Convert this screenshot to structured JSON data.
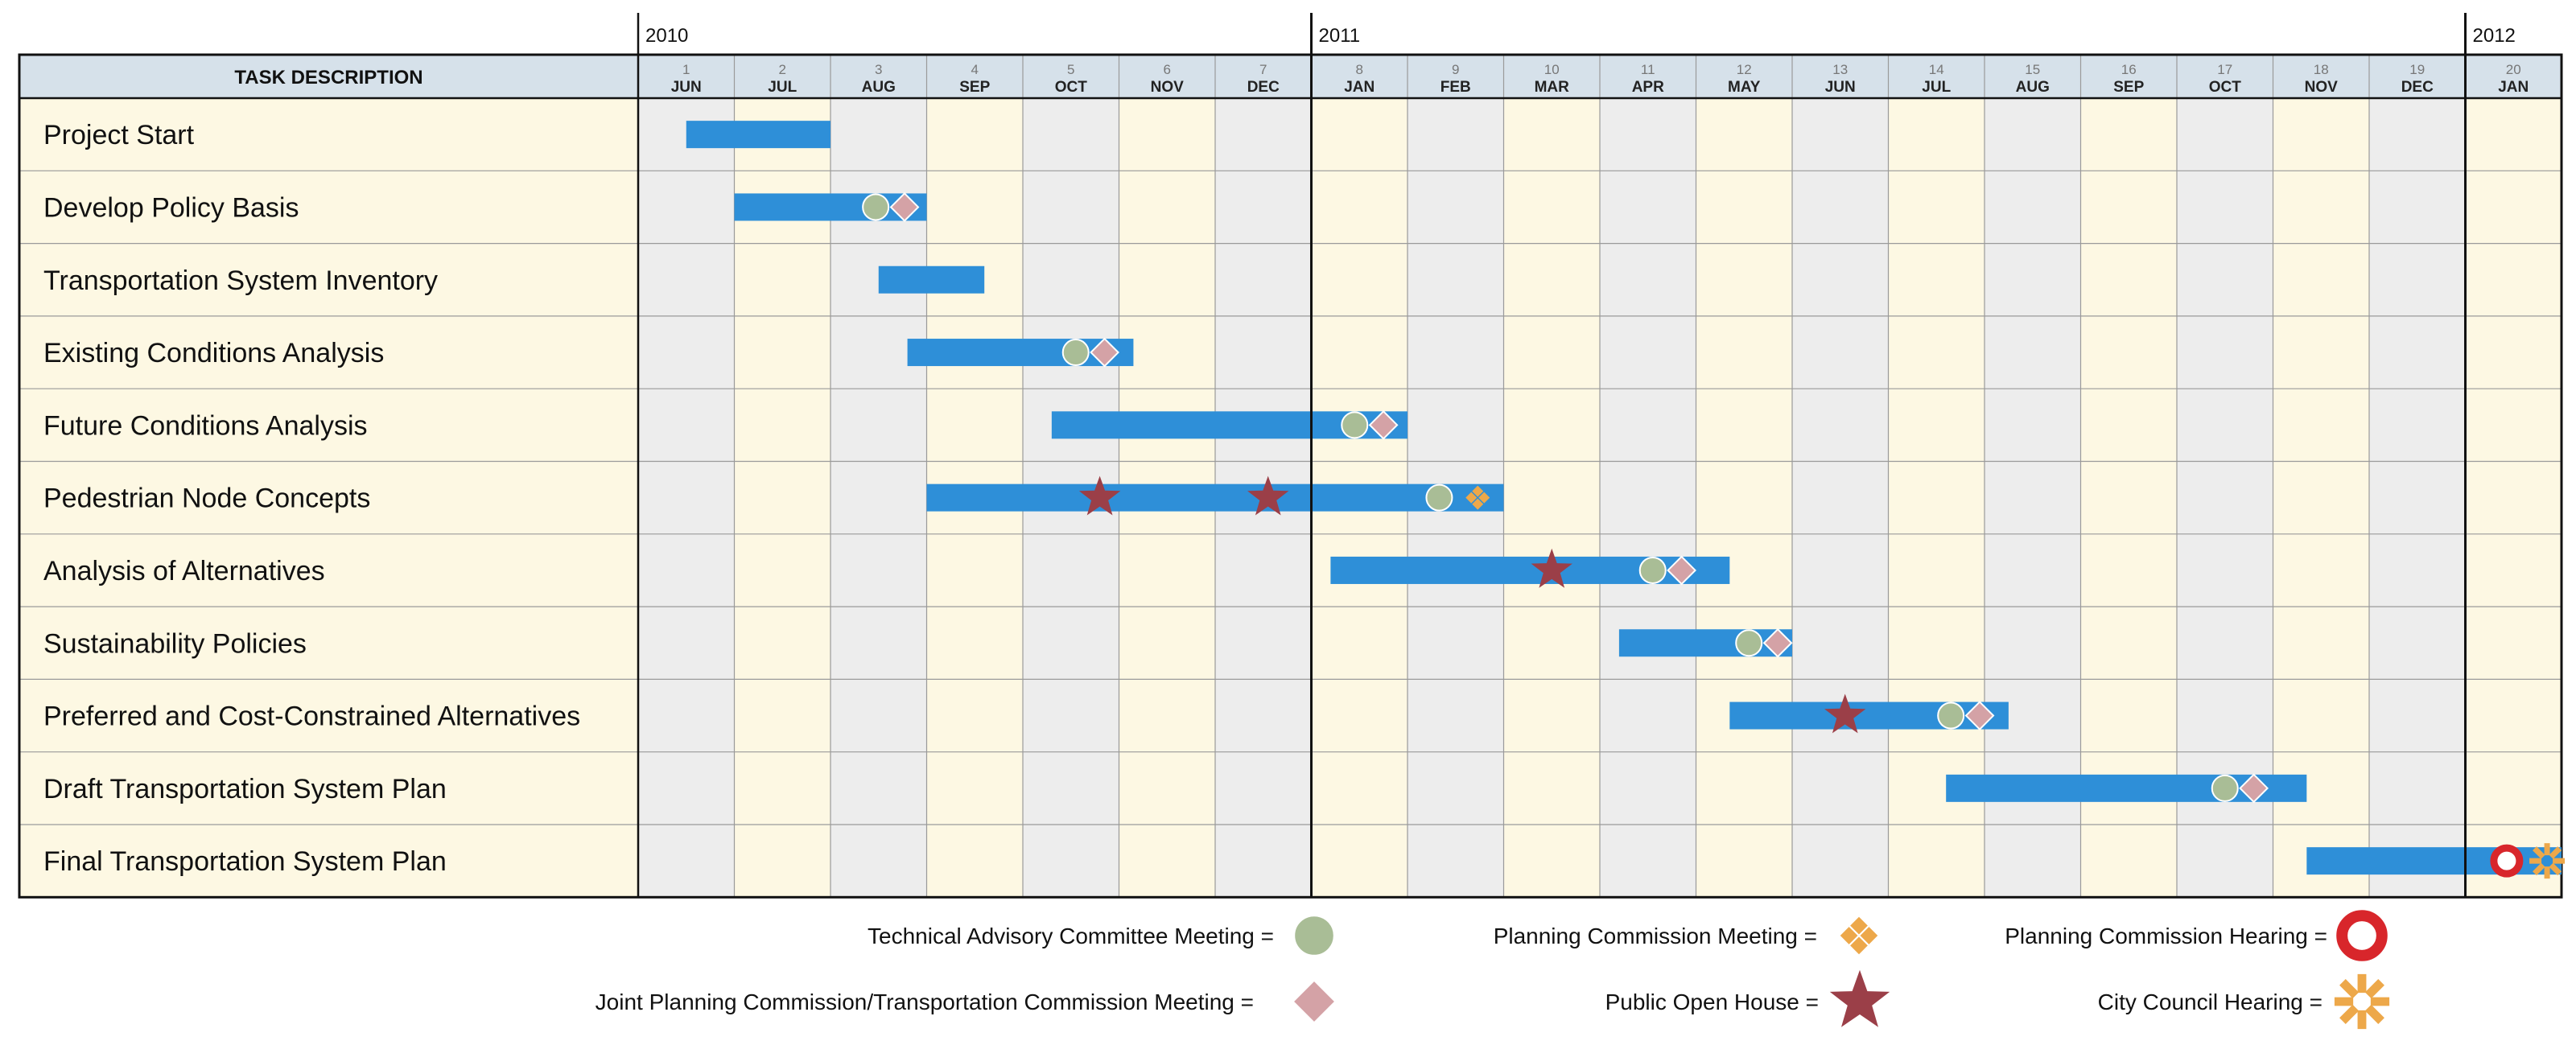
{
  "chart_data": {
    "type": "gantt",
    "header_label": "TASK DESCRIPTION",
    "years": [
      {
        "label": "2010",
        "start_index": 0
      },
      {
        "label": "2011",
        "start_index": 7
      },
      {
        "label": "2012",
        "start_index": 19
      }
    ],
    "months": [
      {
        "num": "1",
        "name": "JUN"
      },
      {
        "num": "2",
        "name": "JUL"
      },
      {
        "num": "3",
        "name": "AUG"
      },
      {
        "num": "4",
        "name": "SEP"
      },
      {
        "num": "5",
        "name": "OCT"
      },
      {
        "num": "6",
        "name": "NOV"
      },
      {
        "num": "7",
        "name": "DEC"
      },
      {
        "num": "8",
        "name": "JAN"
      },
      {
        "num": "9",
        "name": "FEB"
      },
      {
        "num": "10",
        "name": "MAR"
      },
      {
        "num": "11",
        "name": "APR"
      },
      {
        "num": "12",
        "name": "MAY"
      },
      {
        "num": "13",
        "name": "JUN"
      },
      {
        "num": "14",
        "name": "JUL"
      },
      {
        "num": "15",
        "name": "AUG"
      },
      {
        "num": "16",
        "name": "SEP"
      },
      {
        "num": "17",
        "name": "OCT"
      },
      {
        "num": "18",
        "name": "NOV"
      },
      {
        "num": "19",
        "name": "DEC"
      },
      {
        "num": "20",
        "name": "JAN"
      }
    ],
    "tasks": [
      {
        "name": "Project Start",
        "start": 0.5,
        "end": 2.0,
        "events": []
      },
      {
        "name": "Develop Policy Basis",
        "start": 1.0,
        "end": 3.0,
        "events": [
          {
            "type": "tac",
            "at": 2.47
          },
          {
            "type": "joint",
            "at": 2.77
          }
        ]
      },
      {
        "name": "Transportation System Inventory",
        "start": 2.5,
        "end": 3.6,
        "events": []
      },
      {
        "name": "Existing  Conditions Analysis",
        "start": 2.8,
        "end": 5.15,
        "events": [
          {
            "type": "tac",
            "at": 4.55
          },
          {
            "type": "joint",
            "at": 4.85
          }
        ]
      },
      {
        "name": "Future  Conditions Analysis",
        "start": 4.3,
        "end": 8.0,
        "events": [
          {
            "type": "tac",
            "at": 7.45
          },
          {
            "type": "joint",
            "at": 7.75
          }
        ]
      },
      {
        "name": "Pedestrian Node Concepts",
        "start": 3.0,
        "end": 9.0,
        "events": [
          {
            "type": "open_house",
            "at": 4.8
          },
          {
            "type": "open_house",
            "at": 6.55
          },
          {
            "type": "tac",
            "at": 8.33
          },
          {
            "type": "pc_meeting",
            "at": 8.73
          }
        ]
      },
      {
        "name": "Analysis of Alternatives",
        "start": 7.2,
        "end": 11.35,
        "events": [
          {
            "type": "open_house",
            "at": 9.5
          },
          {
            "type": "tac",
            "at": 10.55
          },
          {
            "type": "joint",
            "at": 10.85
          }
        ]
      },
      {
        "name": "Sustainability Policies",
        "start": 10.2,
        "end": 12.0,
        "events": [
          {
            "type": "tac",
            "at": 11.55
          },
          {
            "type": "joint",
            "at": 11.85
          }
        ]
      },
      {
        "name": "Preferred and Cost-Constrained Alternatives",
        "start": 11.35,
        "end": 14.25,
        "events": [
          {
            "type": "open_house",
            "at": 12.55
          },
          {
            "type": "tac",
            "at": 13.65
          },
          {
            "type": "joint",
            "at": 13.95
          }
        ]
      },
      {
        "name": "Draft Transportation System Plan",
        "start": 13.6,
        "end": 17.35,
        "events": [
          {
            "type": "tac",
            "at": 16.5
          },
          {
            "type": "joint",
            "at": 16.8
          }
        ]
      },
      {
        "name": "Final Transportation System Plan",
        "start": 17.35,
        "end": 20.0,
        "events": [
          {
            "type": "pc_hearing",
            "at": 19.43
          },
          {
            "type": "cc_hearing",
            "at": 19.85
          }
        ]
      }
    ],
    "legend": [
      {
        "type": "tac",
        "label": "Technical Advisory Committee Meeting ="
      },
      {
        "type": "joint",
        "label": "Joint Planning Commission/Transportation Commission Meeting ="
      },
      {
        "type": "pc_meeting",
        "label": "Planning Commission Meeting ="
      },
      {
        "type": "open_house",
        "label": "Public Open House ="
      },
      {
        "type": "pc_hearing",
        "label": "Planning Commission Hearing ="
      },
      {
        "type": "cc_hearing",
        "label": "City Council Hearing ="
      }
    ],
    "colors": {
      "bar": "#2e8fd8",
      "header_bg": "#d6e1ea",
      "cream": "#fdf8e3",
      "gray": "#ededed",
      "tac": "#a9bd96",
      "joint": "#d4a2a6",
      "pc_meeting": "#eda84a",
      "open_house": "#9b3f48",
      "pc_hearing": "#d8262b",
      "cc_hearing": "#eda84a"
    },
    "icons": {
      "tac": "circle-icon",
      "joint": "diamond-icon",
      "pc_meeting": "four-diamond-icon",
      "open_house": "star-icon",
      "pc_hearing": "ring-icon",
      "cc_hearing": "asterisk-burst-icon"
    }
  }
}
